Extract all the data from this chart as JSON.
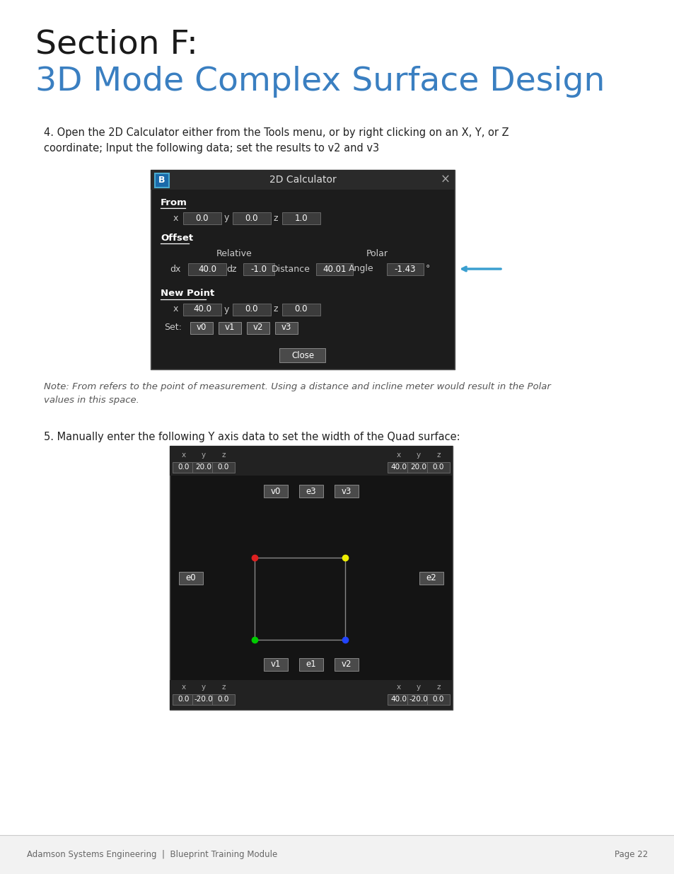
{
  "page_bg": "#ffffff",
  "footer_bg": "#f2f2f2",
  "title_line1": "Section F:",
  "title_line2": "3D Mode Complex Surface Design",
  "title_line1_color": "#1a1a1a",
  "title_line2_color": "#3a7fc1",
  "body_text1": "4. Open the 2D Calculator either from the Tools menu, or by right clicking on an X, Y, or Z\ncoordinate; Input the following data; set the results to v2 and v3",
  "note_text": "Note: From refers to the point of measurement. Using a distance and incline meter would result in the Polar\nvalues in this space.",
  "body_text2": "5. Manually enter the following Y axis data to set the width of the Quad surface:",
  "footer_left": "Adamson Systems Engineering  |  Blueprint Training Module",
  "footer_right": "Page 22",
  "arrow_color": "#3a9fd0",
  "dlg_bg": "#1c1c1c",
  "dlg_titlebar": "#2a2a2a",
  "field_bg": "#3c3c3c",
  "field_border": "#666666",
  "btn_bg": "#4a4a4a",
  "btn_border": "#888888",
  "diag_bg": "#141414",
  "diag_hdr_bg": "#222222",
  "diag_val_color": "#4aafdf",
  "diag_lbl_color": "#aaaaaa"
}
